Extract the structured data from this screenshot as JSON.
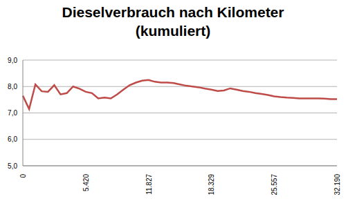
{
  "chart_data": {
    "type": "line",
    "title": "Dieselverbrauch nach Kilometer\n(kumuliert)",
    "categories": [
      "0",
      null,
      null,
      null,
      null,
      null,
      null,
      null,
      null,
      null,
      "5.420",
      null,
      null,
      null,
      null,
      null,
      null,
      null,
      null,
      null,
      "11.827",
      null,
      null,
      null,
      null,
      null,
      null,
      null,
      null,
      null,
      "18.329",
      null,
      null,
      null,
      null,
      null,
      null,
      null,
      null,
      null,
      "25.557",
      null,
      null,
      null,
      null,
      null,
      null,
      null,
      null,
      null,
      "32.190"
    ],
    "series": [
      {
        "name": "Dieselverbrauch",
        "color": "#be4b48",
        "values": [
          7.65,
          7.15,
          8.08,
          7.82,
          7.8,
          8.05,
          7.7,
          7.75,
          8.0,
          7.92,
          7.8,
          7.75,
          7.55,
          7.58,
          7.55,
          7.7,
          7.88,
          8.05,
          8.15,
          8.22,
          8.25,
          8.18,
          8.15,
          8.15,
          8.13,
          8.08,
          8.03,
          8.0,
          7.97,
          7.92,
          7.88,
          7.83,
          7.85,
          7.93,
          7.88,
          7.83,
          7.8,
          7.75,
          7.72,
          7.68,
          7.63,
          7.6,
          7.58,
          7.57,
          7.55,
          7.55,
          7.55,
          7.55,
          7.54,
          7.52,
          7.52
        ]
      }
    ],
    "ylim": [
      5,
      9
    ],
    "yticks": [
      {
        "value": 5,
        "label": "5,0"
      },
      {
        "value": 6,
        "label": "6,0"
      },
      {
        "value": 7,
        "label": "7,0"
      },
      {
        "value": 8,
        "label": "8,0"
      },
      {
        "value": 9,
        "label": "9,0"
      }
    ],
    "grid": true
  }
}
